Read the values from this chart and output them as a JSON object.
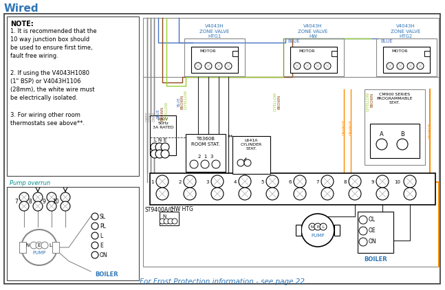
{
  "title": "Wired",
  "bg_color": "#ffffff",
  "note_text_bold": "NOTE:",
  "note_text_lines": [
    "1. It is recommended that the",
    "10 way junction box should",
    "be used to ensure first time,",
    "fault free wiring.",
    " ",
    "2. If using the V4043H1080",
    "(1\" BSP) or V4043H1106",
    "(28mm), the white wire must",
    "be electrically isolated.",
    " ",
    "3. For wiring other room",
    "thermostats see above**."
  ],
  "pump_overrun_label": "Pump overrun",
  "footer_text": "For Frost Protection information - see page 22",
  "zv1_label": "V4043H\nZONE VALVE\nHTG1",
  "zv2_label": "V4043H\nZONE VALVE\nHW",
  "zv3_label": "V4043H\nZONE VALVE\nHTG2",
  "mains_label": "230V\n50Hz\n3A RATED",
  "room_stat_label": "T6360B\nROOM STAT.",
  "cyl_stat_label": "L641A\nCYLINDER\nSTAT.",
  "cm900_label": "CM900 SERIES\nPROGRAMMABLE\nSTAT.",
  "st9400_label": "ST9400A/C",
  "hw_htg_label": "HW HTG",
  "boiler_label": "BOILER",
  "pump_label": "PUMP",
  "wire_grey": "#888888",
  "wire_blue": "#4472c4",
  "wire_brown": "#8B4513",
  "wire_gyellow": "#9acd32",
  "wire_orange": "#FF8C00",
  "wire_black": "#222222",
  "text_blue": "#2E75B6",
  "text_teal": "#008B8B"
}
